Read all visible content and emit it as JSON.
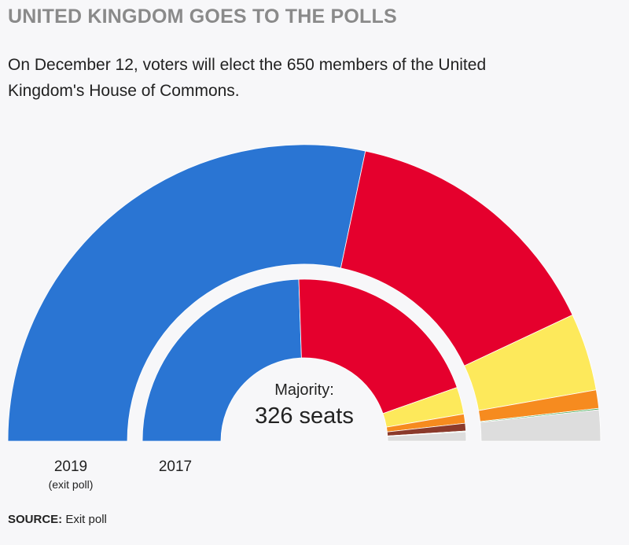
{
  "title": "UNITED KINGDOM GOES TO THE POLLS",
  "subtitle": "On December 12, voters will elect the 650 members of the United Kingdom's House of Commons.",
  "source_label": "SOURCE:",
  "source_text": "Exit poll",
  "center_label": {
    "line1": "Majority:",
    "line2": "326 seats"
  },
  "ring_labels": {
    "outer": "2019",
    "outer_note": "(exit poll)",
    "inner": "2017"
  },
  "colors": {
    "conservative": "#2a75d3",
    "labour": "#e5002d",
    "snp": "#fde95b",
    "libdem": "#f68b1f",
    "dup": "#8b3a2b",
    "green": "#3aa14b",
    "other": "#dddddd"
  },
  "chart_data": {
    "type": "semi-donut",
    "total_seats": 650,
    "majority": 326,
    "series": [
      {
        "name": "2019",
        "note": "(exit poll)",
        "segments": [
          {
            "key": "conservative",
            "seats": 368
          },
          {
            "key": "labour",
            "seats": 191
          },
          {
            "key": "snp",
            "seats": 55
          },
          {
            "key": "libdem",
            "seats": 13
          },
          {
            "key": "green",
            "seats": 1
          },
          {
            "key": "other",
            "seats": 22
          }
        ]
      },
      {
        "name": "2017",
        "segments": [
          {
            "key": "conservative",
            "seats": 318
          },
          {
            "key": "labour",
            "seats": 262
          },
          {
            "key": "snp",
            "seats": 35
          },
          {
            "key": "libdem",
            "seats": 12
          },
          {
            "key": "dup",
            "seats": 10
          },
          {
            "key": "green",
            "seats": 1
          },
          {
            "key": "other",
            "seats": 12
          }
        ]
      }
    ]
  }
}
